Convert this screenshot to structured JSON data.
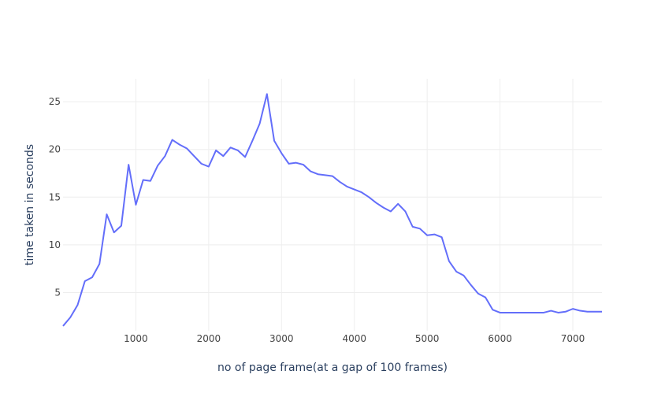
{
  "chart_data": {
    "type": "line",
    "title": "",
    "xlabel": "no of page frame(at a gap of 100 frames)",
    "ylabel": "time taken in seconds",
    "xlim": [
      0,
      7400
    ],
    "ylim": [
      1,
      27.4
    ],
    "xticks": [
      1000,
      2000,
      3000,
      4000,
      5000,
      6000,
      7000
    ],
    "yticks": [
      5,
      10,
      15,
      20,
      25
    ],
    "grid": true,
    "line_color": "#636efa",
    "series": [
      {
        "x": [
          0,
          100,
          200,
          300,
          400,
          500,
          600,
          700,
          800,
          900,
          1000,
          1100,
          1200,
          1300,
          1400,
          1500,
          1600,
          1700,
          1800,
          1900,
          2000,
          2100,
          2200,
          2300,
          2400,
          2500,
          2600,
          2700,
          2800,
          2900,
          3000,
          3100,
          3200,
          3300,
          3400,
          3500,
          3600,
          3700,
          3800,
          3900,
          4000,
          4100,
          4200,
          4300,
          4400,
          4500,
          4600,
          4700,
          4800,
          4900,
          5000,
          5100,
          5200,
          5300,
          5400,
          5500,
          5600,
          5700,
          5800,
          5900,
          6000,
          6100,
          6200,
          6300,
          6400,
          6500,
          6600,
          6700,
          6800,
          6900,
          7000,
          7100,
          7200,
          7300,
          7400
        ],
        "values": [
          1.5,
          2.4,
          3.7,
          6.2,
          6.6,
          8.0,
          13.2,
          11.3,
          12.0,
          18.4,
          14.2,
          16.8,
          16.7,
          18.3,
          19.3,
          21.0,
          20.5,
          20.1,
          19.3,
          18.5,
          18.2,
          19.9,
          19.3,
          20.2,
          19.9,
          19.2,
          20.9,
          22.7,
          25.8,
          20.9,
          19.6,
          18.5,
          18.6,
          18.4,
          17.7,
          17.4,
          17.3,
          17.2,
          16.6,
          16.1,
          15.8,
          15.5,
          15.0,
          14.4,
          13.9,
          13.5,
          14.3,
          13.5,
          11.9,
          11.7,
          11.0,
          11.1,
          10.8,
          8.3,
          7.2,
          6.8,
          5.8,
          4.9,
          4.5,
          3.2,
          2.9,
          2.9,
          2.9,
          2.9,
          2.9,
          2.9,
          2.9,
          3.1,
          2.9,
          3.0,
          3.3,
          3.1,
          3.0,
          3.0,
          3.0
        ]
      }
    ]
  }
}
